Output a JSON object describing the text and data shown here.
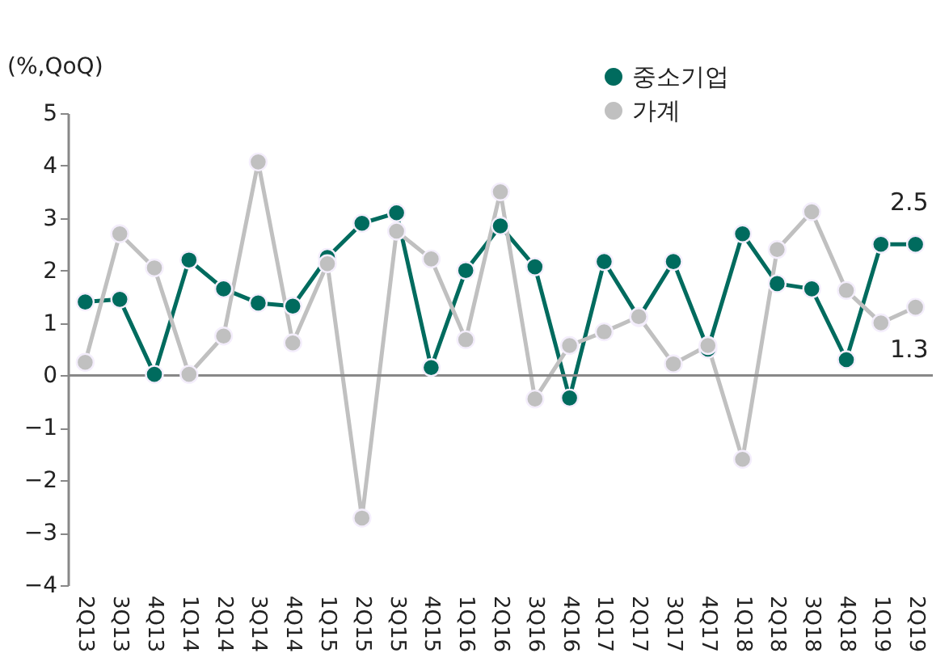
{
  "chart_data": {
    "type": "line",
    "ylabel": "(%,QoQ)",
    "categories": [
      "2Q13",
      "3Q13",
      "4Q13",
      "1Q14",
      "2Q14",
      "3Q14",
      "4Q14",
      "1Q15",
      "2Q15",
      "3Q15",
      "4Q15",
      "1Q16",
      "2Q16",
      "3Q16",
      "4Q16",
      "1Q17",
      "2Q17",
      "3Q17",
      "4Q17",
      "1Q18",
      "2Q18",
      "3Q18",
      "4Q18",
      "1Q19",
      "2Q19"
    ],
    "series": [
      {
        "name": "중소기업",
        "color": "#006b5e",
        "values": [
          1.4,
          1.45,
          0.02,
          2.2,
          1.65,
          1.38,
          1.32,
          2.25,
          2.9,
          3.1,
          0.15,
          2.0,
          2.85,
          2.07,
          -0.43,
          2.17,
          1.1,
          2.17,
          0.5,
          2.7,
          1.75,
          1.65,
          0.3,
          2.5,
          2.5
        ],
        "value_labels": [
          null,
          null,
          null,
          null,
          null,
          null,
          null,
          null,
          null,
          null,
          null,
          null,
          null,
          null,
          null,
          null,
          null,
          null,
          null,
          null,
          null,
          null,
          null,
          null,
          "2.5"
        ]
      },
      {
        "name": "가계",
        "color": "#c0c0c0",
        "values": [
          0.25,
          2.7,
          2.05,
          0.02,
          0.75,
          4.07,
          0.62,
          2.13,
          -2.72,
          2.75,
          2.22,
          0.68,
          3.5,
          -0.45,
          0.57,
          0.83,
          1.12,
          0.22,
          0.57,
          -1.6,
          2.4,
          3.12,
          1.62,
          1.0,
          1.3
        ],
        "value_labels": [
          null,
          null,
          null,
          null,
          null,
          null,
          null,
          null,
          null,
          null,
          null,
          null,
          null,
          null,
          null,
          null,
          null,
          null,
          null,
          null,
          null,
          null,
          null,
          null,
          "1.3"
        ]
      }
    ],
    "ylim": [
      -4,
      5
    ],
    "yticks": [
      -4,
      -3,
      -2,
      -1,
      0,
      1,
      2,
      3,
      4,
      5
    ],
    "grid": false,
    "ref_lines": [
      {
        "axis": "y",
        "value": 0,
        "color": "#888888"
      }
    ],
    "legend": "top right",
    "marker": "circle",
    "line_style": "solid"
  }
}
